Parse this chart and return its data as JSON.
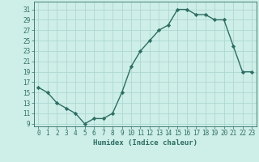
{
  "x": [
    0,
    1,
    2,
    3,
    4,
    5,
    6,
    7,
    8,
    9,
    10,
    11,
    12,
    13,
    14,
    15,
    16,
    17,
    18,
    19,
    20,
    21,
    22,
    23
  ],
  "y": [
    16,
    15,
    13,
    12,
    11,
    9,
    10,
    10,
    11,
    15,
    20,
    23,
    25,
    27,
    28,
    31,
    31,
    30,
    30,
    29,
    29,
    24,
    19,
    19
  ],
  "line_color": "#2d6e63",
  "marker": "D",
  "marker_size": 2.2,
  "bg_color": "#ceeee8",
  "grid_color": "#aed8d2",
  "xlabel": "Humidex (Indice chaleur)",
  "xlim": [
    -0.5,
    23.5
  ],
  "ylim": [
    8.5,
    32.5
  ],
  "yticks": [
    9,
    11,
    13,
    15,
    17,
    19,
    21,
    23,
    25,
    27,
    29,
    31
  ],
  "xticks": [
    0,
    1,
    2,
    3,
    4,
    5,
    6,
    7,
    8,
    9,
    10,
    11,
    12,
    13,
    14,
    15,
    16,
    17,
    18,
    19,
    20,
    21,
    22,
    23
  ],
  "tick_color": "#2d6e63",
  "label_color": "#2d6e63",
  "font_size": 5.5,
  "xlabel_fontsize": 6.5,
  "linewidth": 1.0
}
